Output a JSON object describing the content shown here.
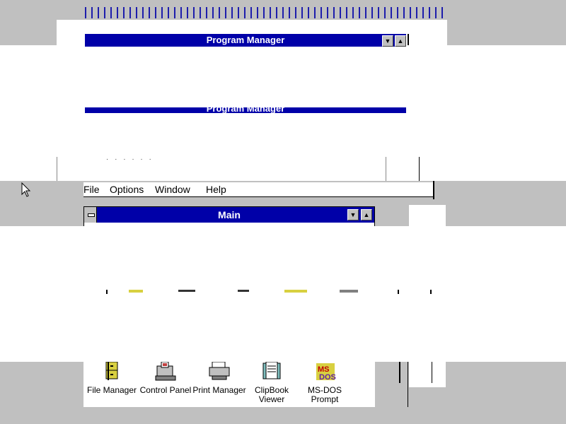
{
  "window_title": "Program Manager",
  "menu": {
    "file": "File",
    "options": "Options",
    "window": "Window",
    "help": "Help"
  },
  "group": {
    "title": "Main"
  },
  "icons": [
    {
      "name": "file-manager",
      "label": "File Manager",
      "icon": "file-cabinet-icon"
    },
    {
      "name": "control-panel",
      "label": "Control Panel",
      "icon": "control-panel-icon"
    },
    {
      "name": "print-manager",
      "label": "Print Manager",
      "icon": "printer-icon"
    },
    {
      "name": "clipbook-viewer",
      "label": "ClipBook\nViewer",
      "icon": "clipbook-icon"
    },
    {
      "name": "ms-dos-prompt",
      "label": "MS-DOS\nPrompt",
      "icon": "ms-dos-icon"
    }
  ],
  "colors": {
    "title_bar": "#0000a8",
    "desktop": "#c0c0c0",
    "window_bg": "#ffffff"
  }
}
